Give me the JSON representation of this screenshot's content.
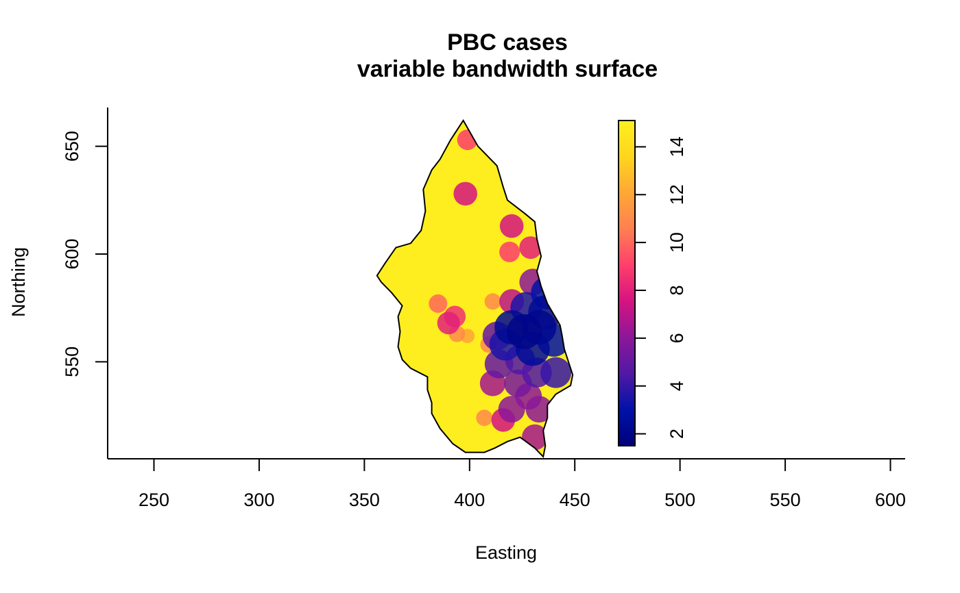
{
  "chart_data": {
    "type": "heatmap",
    "title": "PBC cases",
    "subtitle": "variable bandwidth surface",
    "xlabel": "Easting",
    "ylabel": "Northing",
    "xlim": [
      228,
      607
    ],
    "ylim": [
      505,
      668
    ],
    "x_ticks": [
      250,
      300,
      350,
      400,
      450,
      500,
      550,
      600
    ],
    "y_ticks": [
      550,
      600,
      650
    ],
    "grid": false,
    "legend": {
      "type": "colorbar",
      "placement": "right",
      "range": [
        1.5,
        15.1
      ],
      "ticks": [
        2,
        4,
        6,
        8,
        10,
        12,
        14
      ]
    },
    "colormap": [
      "#00007a",
      "#0012a8",
      "#5218a6",
      "#8c1799",
      "#d61380",
      "#ff3f6b",
      "#ff7f52",
      "#ffa735",
      "#ffd51d",
      "#fff01f"
    ],
    "outline_color": "#000000",
    "study_region_boundary": [
      [
        397,
        662
      ],
      [
        404,
        650
      ],
      [
        413,
        641
      ],
      [
        416,
        631
      ],
      [
        418,
        625
      ],
      [
        426,
        619
      ],
      [
        431,
        615
      ],
      [
        432,
        607
      ],
      [
        434,
        599
      ],
      [
        432,
        592
      ],
      [
        434,
        585
      ],
      [
        437,
        577
      ],
      [
        440,
        572
      ],
      [
        443,
        567
      ],
      [
        444,
        562
      ],
      [
        445,
        556
      ],
      [
        447,
        550
      ],
      [
        449,
        544
      ],
      [
        448,
        539
      ],
      [
        441,
        535
      ],
      [
        437,
        530
      ],
      [
        437,
        524
      ],
      [
        435,
        518
      ],
      [
        436,
        511
      ],
      [
        435,
        506
      ],
      [
        431,
        510
      ],
      [
        424,
        515
      ],
      [
        418,
        513
      ],
      [
        412,
        510
      ],
      [
        407,
        508
      ],
      [
        398,
        508
      ],
      [
        392,
        512
      ],
      [
        386,
        519
      ],
      [
        382,
        526
      ],
      [
        382,
        531
      ],
      [
        380,
        537
      ],
      [
        380,
        543
      ],
      [
        372,
        547
      ],
      [
        368,
        551
      ],
      [
        366,
        557
      ],
      [
        367,
        564
      ],
      [
        366,
        571
      ],
      [
        368,
        576
      ],
      [
        363,
        582
      ],
      [
        358,
        587
      ],
      [
        356,
        590
      ],
      [
        360,
        596
      ],
      [
        365,
        603
      ],
      [
        372,
        605
      ],
      [
        377,
        611
      ],
      [
        379,
        620
      ],
      [
        378,
        630
      ],
      [
        382,
        639
      ],
      [
        386,
        644
      ],
      [
        391,
        653
      ],
      [
        395,
        659
      ]
    ],
    "intensity_background": 15,
    "intensity_peaks": [
      {
        "x": 426,
        "y": 564,
        "value": 2
      },
      {
        "x": 433,
        "y": 566,
        "value": 2.2
      },
      {
        "x": 420,
        "y": 566,
        "value": 2.3
      },
      {
        "x": 436,
        "y": 573,
        "value": 2.4
      },
      {
        "x": 430,
        "y": 556,
        "value": 2.5
      },
      {
        "x": 437,
        "y": 582,
        "value": 3
      },
      {
        "x": 417,
        "y": 558,
        "value": 3.5
      },
      {
        "x": 427,
        "y": 575,
        "value": 3.5
      },
      {
        "x": 440,
        "y": 560,
        "value": 3
      },
      {
        "x": 441,
        "y": 545,
        "value": 4
      },
      {
        "x": 432,
        "y": 545,
        "value": 4.5
      },
      {
        "x": 424,
        "y": 551,
        "value": 4.5
      },
      {
        "x": 414,
        "y": 549,
        "value": 5
      },
      {
        "x": 413,
        "y": 562,
        "value": 5
      },
      {
        "x": 423,
        "y": 540,
        "value": 5.5
      },
      {
        "x": 428,
        "y": 534,
        "value": 6
      },
      {
        "x": 420,
        "y": 528,
        "value": 6
      },
      {
        "x": 433,
        "y": 528,
        "value": 6
      },
      {
        "x": 411,
        "y": 540,
        "value": 6.5
      },
      {
        "x": 430,
        "y": 587,
        "value": 6
      },
      {
        "x": 420,
        "y": 578,
        "value": 7
      },
      {
        "x": 431,
        "y": 515,
        "value": 6.5
      },
      {
        "x": 416,
        "y": 523,
        "value": 7.5
      },
      {
        "x": 429,
        "y": 603,
        "value": 8
      },
      {
        "x": 420,
        "y": 613,
        "value": 7.5
      },
      {
        "x": 398,
        "y": 628,
        "value": 7.5
      },
      {
        "x": 399,
        "y": 653,
        "value": 9
      },
      {
        "x": 390,
        "y": 568,
        "value": 8
      },
      {
        "x": 393,
        "y": 571,
        "value": 8.5
      },
      {
        "x": 385,
        "y": 577,
        "value": 10
      },
      {
        "x": 394,
        "y": 563,
        "value": 11
      },
      {
        "x": 411,
        "y": 578,
        "value": 11
      },
      {
        "x": 399,
        "y": 562,
        "value": 12
      },
      {
        "x": 409,
        "y": 558,
        "value": 11
      },
      {
        "x": 407,
        "y": 524,
        "value": 11
      },
      {
        "x": 419,
        "y": 601,
        "value": 9
      }
    ]
  }
}
